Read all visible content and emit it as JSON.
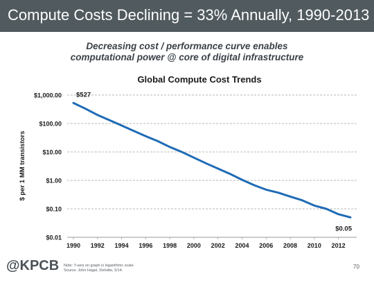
{
  "header": {
    "title": "Compute Costs Declining = 33% Annually, 1990-2013"
  },
  "subtitle": {
    "line1": "Decreasing cost / performance curve enables",
    "line2": "computational power @ core of digital infrastructure"
  },
  "chart_data": {
    "type": "line",
    "title": "Global Compute Cost Trends",
    "ylabel": "$ per 1 MM transistors",
    "xlabel": "",
    "yscale": "log",
    "ylim": [
      0.01,
      1000
    ],
    "xlim": [
      1990,
      2013
    ],
    "grid": true,
    "color": "#1f6bb5",
    "y_ticks": [
      {
        "value": 1000,
        "label": "$1,000.00"
      },
      {
        "value": 100,
        "label": "$100.00"
      },
      {
        "value": 10,
        "label": "$10.00"
      },
      {
        "value": 1,
        "label": "$1.00"
      },
      {
        "value": 0.1,
        "label": "$0.10"
      },
      {
        "value": 0.01,
        "label": "$0.01"
      }
    ],
    "x_ticks": [
      "1990",
      "1992",
      "1994",
      "1996",
      "1998",
      "2000",
      "2002",
      "2004",
      "2006",
      "2008",
      "2010",
      "2012"
    ],
    "series": [
      {
        "x": [
          1990,
          1991,
          1992,
          1993,
          1994,
          1995,
          1996,
          1997,
          1998,
          1999,
          2000,
          2001,
          2002,
          2003,
          2004,
          2005,
          2006,
          2007,
          2008,
          2009,
          2010,
          2011,
          2012,
          2013
        ],
        "values": [
          527,
          330,
          200,
          130,
          85,
          55,
          36,
          24,
          15,
          10,
          6.3,
          4,
          2.6,
          1.7,
          1.05,
          0.68,
          0.47,
          0.37,
          0.27,
          0.2,
          0.13,
          0.1,
          0.065,
          0.05
        ]
      }
    ],
    "annotations": [
      {
        "text": "$527",
        "x": 1990,
        "y": 527
      },
      {
        "text": "$0.05",
        "x": 2013,
        "y": 0.05
      }
    ]
  },
  "footer": {
    "logo": "@KPCB",
    "note_line1": "Note: Y-axis on graph is logarithmic scale.",
    "note_line2": "Source: John Hagel, Deloitte, 5/14.",
    "page_number": "70"
  }
}
